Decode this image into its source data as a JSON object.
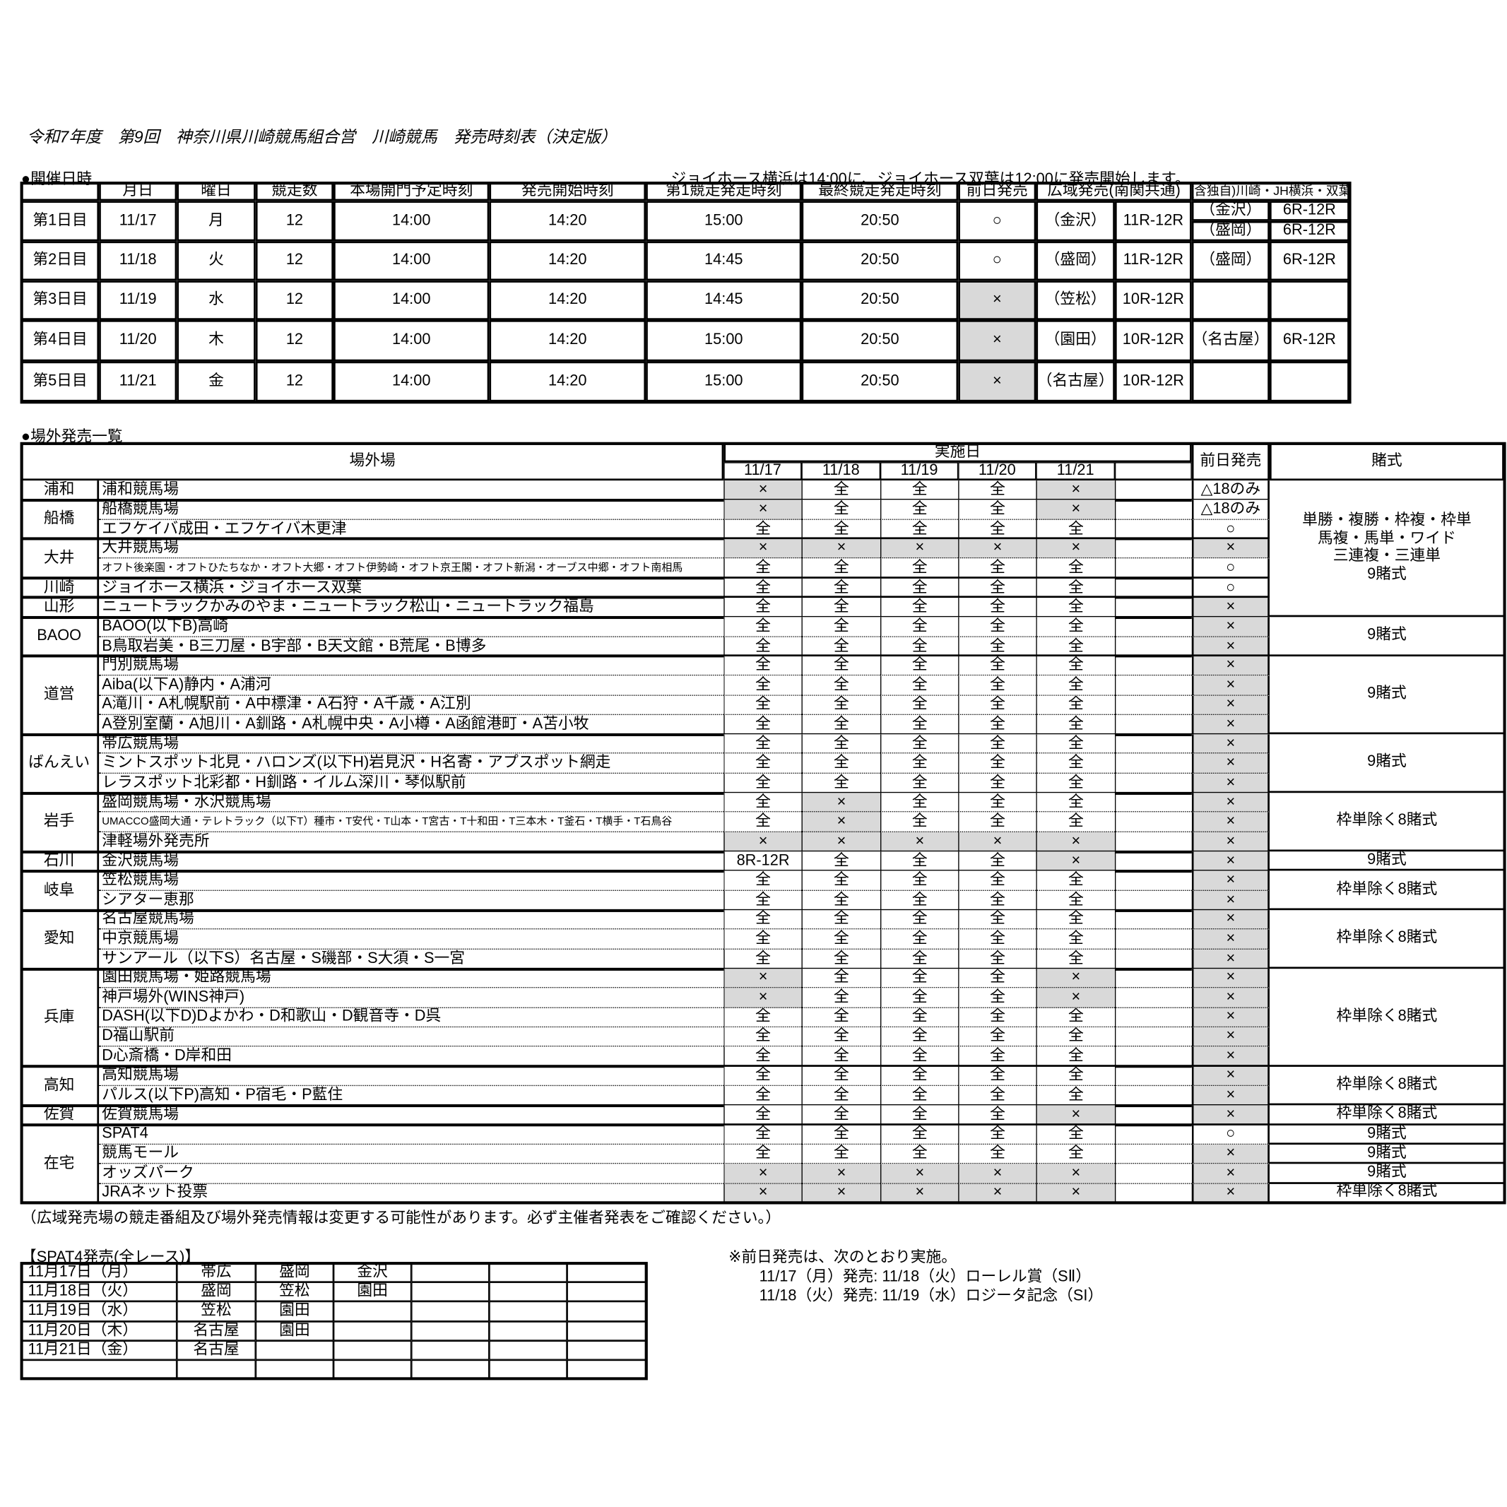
{
  "title": "令和7年度　第9回　神奈川県川崎競馬組合営　川崎競馬　発売時刻表（決定版）",
  "section1": "●開催日時",
  "note1": "ジョイホース横浜は14:00に、ジョイホース双葉は12:00に発売開始します。",
  "schedule": {
    "headers": [
      "月日",
      "曜日",
      "競走数",
      "本場開門予定時刻",
      "発売開始時刻",
      "第1競走発走時刻",
      "最終競走発走時刻",
      "前日発売",
      "広域発売(南関共通)",
      "(含独自)川崎・JH横浜・双葉"
    ],
    "rows": [
      {
        "day": "第1日目",
        "date": "11/17",
        "weekday": "月",
        "races": "12",
        "gate": "14:00",
        "sale": "14:20",
        "first": "15:00",
        "last": "20:50",
        "prev": "○",
        "wide": [
          "（金沢）",
          "11R-12R"
        ],
        "own": [
          [
            "（金沢）",
            "6R-12R"
          ],
          [
            "（盛岡）",
            "6R-12R"
          ]
        ]
      },
      {
        "day": "第2日目",
        "date": "11/18",
        "weekday": "火",
        "races": "12",
        "gate": "14:00",
        "sale": "14:20",
        "first": "14:45",
        "last": "20:50",
        "prev": "○",
        "wide": [
          "（盛岡）",
          "11R-12R"
        ],
        "own": [
          [
            "（盛岡）",
            "6R-12R"
          ]
        ]
      },
      {
        "day": "第3日目",
        "date": "11/19",
        "weekday": "水",
        "races": "12",
        "gate": "14:00",
        "sale": "14:20",
        "first": "14:45",
        "last": "20:50",
        "prev": "×",
        "wide": [
          "（笠松）",
          "10R-12R"
        ]
      },
      {
        "day": "第4日目",
        "date": "11/20",
        "weekday": "木",
        "races": "12",
        "gate": "14:00",
        "sale": "14:20",
        "first": "15:00",
        "last": "20:50",
        "prev": "×",
        "wide": [
          "（園田）",
          "10R-12R"
        ],
        "own": [
          [
            "（名古屋）",
            "6R-12R"
          ]
        ]
      },
      {
        "day": "第5日目",
        "date": "11/21",
        "weekday": "金",
        "races": "12",
        "gate": "14:00",
        "sale": "14:20",
        "first": "15:00",
        "last": "20:50",
        "prev": "×",
        "wide": [
          "（名古屋）",
          "10R-12R"
        ]
      }
    ]
  },
  "section2": "●場外発売一覧",
  "offsite": {
    "venue_header": "場外場",
    "impl_header": "実施日",
    "dates": [
      "11/17",
      "11/18",
      "11/19",
      "11/20",
      "11/21"
    ],
    "prev_header": "前日発売",
    "bet_header": "賭式",
    "groups": [
      {
        "region": "浦和",
        "venues": [
          {
            "name": "浦和競馬場",
            "days": [
              "×",
              "全",
              "全",
              "全",
              "×"
            ],
            "prev": "△18のみ",
            "bet": [
              "単勝・複勝・枠複・枠単",
              "馬複・馬単・ワイド",
              "三連複・三連単",
              "9賭式"
            ]
          }
        ]
      },
      {
        "region": "船橋",
        "venues": [
          {
            "name": "船橋競馬場",
            "days": [
              "×",
              "全",
              "全",
              "全",
              "×"
            ],
            "prev": "△18のみ"
          },
          {
            "name": "エフケイバ成田・エフケイバ木更津",
            "days": [
              "全",
              "全",
              "全",
              "全",
              "全"
            ],
            "prev": "○"
          }
        ]
      },
      {
        "region": "大井",
        "venues": [
          {
            "name": "大井競馬場",
            "days": [
              "×",
              "×",
              "×",
              "×",
              "×"
            ],
            "prev": "×"
          },
          {
            "name": "オフト後楽園・オフトひたちなか・オフト大郷・オフト伊勢崎・オフト京王閣・オフト新潟・オーブス中郷・オフト南相馬",
            "days": [
              "全",
              "全",
              "全",
              "全",
              "全"
            ],
            "prev": "○"
          }
        ]
      },
      {
        "region": "川崎",
        "venues": [
          {
            "name": "ジョイホース横浜・ジョイホース双葉",
            "days": [
              "全",
              "全",
              "全",
              "全",
              "全"
            ],
            "prev": "○"
          }
        ]
      },
      {
        "region": "山形",
        "venues": [
          {
            "name": "ニュートラックかみのやま・ニュートラック松山・ニュートラック福島",
            "days": [
              "全",
              "全",
              "全",
              "全",
              "全"
            ],
            "prev": "×"
          }
        ]
      },
      {
        "region": "BAOO",
        "venues": [
          {
            "name": "BAOO(以下B)高崎",
            "days": [
              "全",
              "全",
              "全",
              "全",
              "全"
            ],
            "prev": "×",
            "bet": [
              "9賭式"
            ]
          },
          {
            "name": "B鳥取岩美・B三刀屋・B宇部・B天文館・B荒尾・B博多",
            "days": [
              "全",
              "全",
              "全",
              "全",
              "全"
            ],
            "prev": "×"
          }
        ]
      },
      {
        "region": "道営",
        "venues": [
          {
            "name": "門別競馬場",
            "days": [
              "全",
              "全",
              "全",
              "全",
              "全"
            ],
            "prev": "×",
            "bet": [
              "9賭式"
            ]
          },
          {
            "name": "Aiba(以下A)静内・A浦河",
            "days": [
              "全",
              "全",
              "全",
              "全",
              "全"
            ],
            "prev": "×"
          },
          {
            "name": "A滝川・A札幌駅前・A中標津・A石狩・A千歳・A江別",
            "days": [
              "全",
              "全",
              "全",
              "全",
              "全"
            ],
            "prev": "×"
          },
          {
            "name": "A登別室蘭・A旭川・A釧路・A札幌中央・A小樽・A函館港町・A苫小牧",
            "days": [
              "全",
              "全",
              "全",
              "全",
              "全"
            ],
            "prev": "×"
          }
        ]
      },
      {
        "region": "ばんえい",
        "venues": [
          {
            "name": "帯広競馬場",
            "days": [
              "全",
              "全",
              "全",
              "全",
              "全"
            ],
            "prev": "×",
            "bet": [
              "9賭式"
            ]
          },
          {
            "name": "ミントスポット北見・ハロンズ(以下H)岩見沢・H名寄・アプスポット網走",
            "days": [
              "全",
              "全",
              "全",
              "全",
              "全"
            ],
            "prev": "×"
          },
          {
            "name": "レラスポット北彩都・H釧路・イルム深川・琴似駅前",
            "days": [
              "全",
              "全",
              "全",
              "全",
              "全"
            ],
            "prev": "×"
          }
        ]
      },
      {
        "region": "岩手",
        "venues": [
          {
            "name": "盛岡競馬場・水沢競馬場",
            "days": [
              "全",
              "×",
              "全",
              "全",
              "全"
            ],
            "prev": "×",
            "bet": [
              "枠単除く8賭式"
            ]
          },
          {
            "name": "UMACCO盛岡大通・テレトラック（以下T）種市・T安代・T山本・T宮古・T十和田・T三本木・T釜石・T横手・T石鳥谷",
            "days": [
              "全",
              "×",
              "全",
              "全",
              "全"
            ],
            "prev": "×"
          },
          {
            "name": "津軽場外発売所",
            "days": [
              "×",
              "×",
              "×",
              "×",
              "×"
            ],
            "prev": "×"
          }
        ]
      },
      {
        "region": "石川",
        "venues": [
          {
            "name": "金沢競馬場",
            "days": [
              "8R-12R",
              "全",
              "全",
              "全",
              "×"
            ],
            "prev": "×",
            "bet": [
              "9賭式"
            ]
          }
        ]
      },
      {
        "region": "岐阜",
        "venues": [
          {
            "name": "笠松競馬場",
            "days": [
              "全",
              "全",
              "全",
              "全",
              "全"
            ],
            "prev": "×",
            "bet": [
              "枠単除く8賭式"
            ]
          },
          {
            "name": "シアター恵那",
            "days": [
              "全",
              "全",
              "全",
              "全",
              "全"
            ],
            "prev": "×"
          }
        ]
      },
      {
        "region": "愛知",
        "venues": [
          {
            "name": "名古屋競馬場",
            "days": [
              "全",
              "全",
              "全",
              "全",
              "全"
            ],
            "prev": "×",
            "bet": [
              "枠単除く8賭式"
            ]
          },
          {
            "name": "中京競馬場",
            "days": [
              "全",
              "全",
              "全",
              "全",
              "全"
            ],
            "prev": "×"
          },
          {
            "name": "サンアール（以下S）名古屋・S磯部・S大須・S一宮",
            "days": [
              "全",
              "全",
              "全",
              "全",
              "全"
            ],
            "prev": "×"
          }
        ]
      },
      {
        "region": "兵庫",
        "venues": [
          {
            "name": "園田競馬場・姫路競馬場",
            "days": [
              "×",
              "全",
              "全",
              "全",
              "×"
            ],
            "prev": "×",
            "bet": [
              "枠単除く8賭式"
            ]
          },
          {
            "name": "神戸場外(WINS神戸)",
            "days": [
              "×",
              "全",
              "全",
              "全",
              "×"
            ],
            "prev": "×"
          },
          {
            "name": "DASH(以下D)Dよかわ・D和歌山・D観音寺・D呉",
            "days": [
              "全",
              "全",
              "全",
              "全",
              "全"
            ],
            "prev": "×"
          },
          {
            "name": "D福山駅前",
            "days": [
              "全",
              "全",
              "全",
              "全",
              "全"
            ],
            "prev": "×"
          },
          {
            "name": "D心斎橋・D岸和田",
            "days": [
              "全",
              "全",
              "全",
              "全",
              "全"
            ],
            "prev": "×"
          }
        ]
      },
      {
        "region": "高知",
        "venues": [
          {
            "name": "高知競馬場",
            "days": [
              "全",
              "全",
              "全",
              "全",
              "全"
            ],
            "prev": "×",
            "bet": [
              "枠単除く8賭式"
            ]
          },
          {
            "name": "パルス(以下P)高知・P宿毛・P藍住",
            "days": [
              "全",
              "全",
              "全",
              "全",
              "全"
            ],
            "prev": "×"
          }
        ]
      },
      {
        "region": "佐賀",
        "venues": [
          {
            "name": "佐賀競馬場",
            "days": [
              "全",
              "全",
              "全",
              "全",
              "×"
            ],
            "prev": "×",
            "bet": [
              "枠単除く8賭式"
            ]
          }
        ]
      },
      {
        "region": "在宅",
        "venues": [
          {
            "name": "SPAT4",
            "days": [
              "全",
              "全",
              "全",
              "全",
              "全"
            ],
            "prev": "○",
            "bet": [
              "9賭式"
            ]
          },
          {
            "name": "競馬モール",
            "days": [
              "全",
              "全",
              "全",
              "全",
              "全"
            ],
            "prev": "×",
            "bet": [
              "9賭式"
            ]
          },
          {
            "name": "オッズパーク",
            "days": [
              "×",
              "×",
              "×",
              "×",
              "×"
            ],
            "prev": "×",
            "bet": [
              "9賭式"
            ]
          },
          {
            "name": "JRAネット投票",
            "days": [
              "×",
              "×",
              "×",
              "×",
              "×"
            ],
            "prev": "×",
            "bet": [
              "枠単除く8賭式"
            ]
          }
        ]
      }
    ]
  },
  "footnote": "（広域発売場の競走番組及び場外発売情報は変更する可能性があります。必ず主催者発表をご確認ください。）",
  "spat4": {
    "title": "【SPAT4発売(全レース)】",
    "rows": [
      [
        "11月17日（月）",
        "帯広",
        "盛岡",
        "金沢"
      ],
      [
        "11月18日（火）",
        "盛岡",
        "笠松",
        "園田"
      ],
      [
        "11月19日（水）",
        "笠松",
        "園田"
      ],
      [
        "11月20日（木）",
        "名古屋",
        "園田"
      ],
      [
        "11月21日（金）",
        "名古屋"
      ]
    ]
  },
  "prev_note": {
    "heading": "※前日発売は、次のとおり実施。",
    "lines": [
      "11/17（月）発売: 11/18（火）ローレル賞（SⅡ）",
      "11/18（火）発売: 11/19（水）ロジータ記念（SI）"
    ]
  }
}
